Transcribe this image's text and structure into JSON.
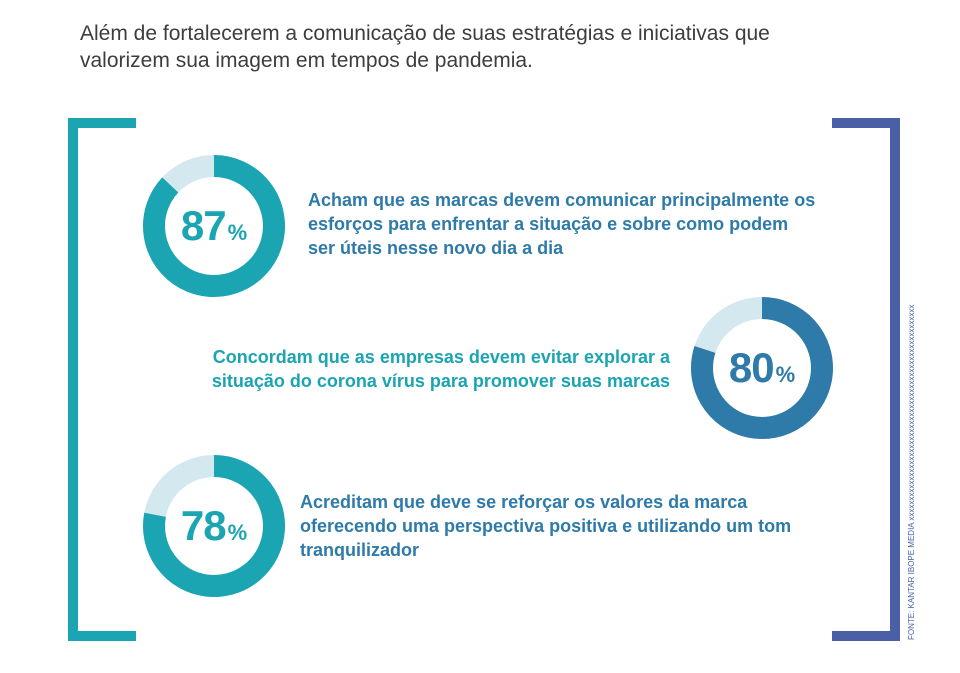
{
  "intro": "Além de fortalecerem a comunicação de suas estratégias e iniciativas que valorizem sua imagem em tempos de pandemia.",
  "source": "FONTE: KANTAR IBOPE MEDIA xxxxxxxxxxxxxxxxxxxxxxxxxxxxxxxxxxxxxxxxxxxxxxxxxxxxxx",
  "colors": {
    "teal": "#1ba4b2",
    "blue": "#2e7aa8",
    "track": "#d3e8ef",
    "bracket_right": "#4a5fa6"
  },
  "chart_data": [
    {
      "type": "pie",
      "value": 87,
      "value_label": "87",
      "unit": "%",
      "text": "Acham que as marcas devem comunicar principalmente os esforços para enfrentar a situação e sobre como podem ser úteis nesse novo dia a dia"
    },
    {
      "type": "pie",
      "value": 80,
      "value_label": "80",
      "unit": "%",
      "text": "Concordam que as empresas devem evitar explorar a situação do corona vírus para promover suas marcas"
    },
    {
      "type": "pie",
      "value": 78,
      "value_label": "78",
      "unit": "%",
      "text": "Acreditam que deve se reforçar os valores da marca oferecendo uma perspectiva positiva e utilizando um tom tranquilizador"
    }
  ]
}
